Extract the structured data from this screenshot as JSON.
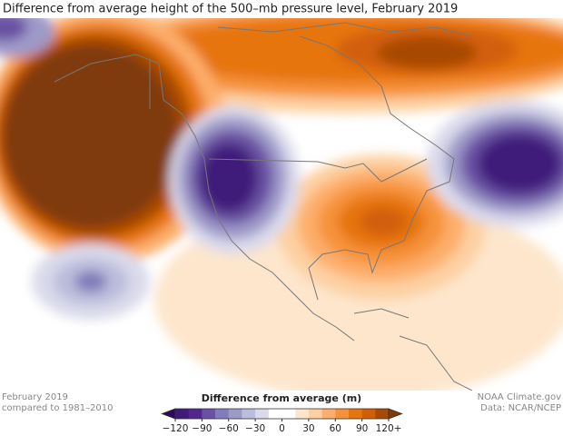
{
  "title": "Difference from average height of the 500–mb pressure level, February 2019",
  "footer": {
    "left": [
      "February 2019",
      "compared to 1981–2010"
    ],
    "right": [
      "NOAA Climate.gov",
      "Data: NCAR/NCEP"
    ]
  },
  "legend": {
    "title": "Difference from average (m)",
    "ticks": [
      {
        "value": -120,
        "label": "−120"
      },
      {
        "value": -90,
        "label": "−90"
      },
      {
        "value": -60,
        "label": "−60"
      },
      {
        "value": -30,
        "label": "−30"
      },
      0,
      30,
      60,
      90,
      {
        "value": 120,
        "label": "120+"
      }
    ],
    "colors": [
      "#2d0a5e",
      "#3f1a7a",
      "#54278f",
      "#6a51a3",
      "#807dba",
      "#9e9ac8",
      "#bcbddc",
      "#dadaeb",
      "#ffffff",
      "#ffffff",
      "#fde6cc",
      "#fdd0a2",
      "#fdae6b",
      "#f6923a",
      "#e6750f",
      "#d25e08",
      "#a84a06",
      "#7f3b08"
    ]
  }
}
